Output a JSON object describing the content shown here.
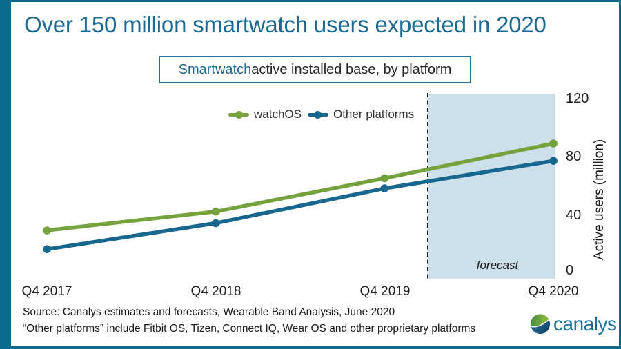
{
  "header": {
    "title": "Over 150 million smartwatch users expected in 2020",
    "subtitle": {
      "highlight": "Smartwatch",
      "rest": " active installed base, by platform"
    }
  },
  "chart_data": {
    "type": "line",
    "title": "Smartwatch active installed base, by platform",
    "categories": [
      "Q4 2017",
      "Q4 2018",
      "Q4 2019",
      "Q4 2020"
    ],
    "series": [
      {
        "name": "watchOS",
        "color": "#76a23e",
        "values": [
          30,
          43,
          66,
          90
        ]
      },
      {
        "name": "Other platforms",
        "color": "#17678e",
        "values": [
          17,
          35,
          59,
          78
        ]
      }
    ],
    "xlabel": "",
    "ylabel": "Active users (million)",
    "ylim": [
      0,
      120
    ],
    "yticks": [
      120,
      80,
      40,
      0
    ],
    "ytick_labels": [
      "120",
      "80",
      "40",
      "0"
    ],
    "grid": false,
    "legend_position": "top-center",
    "marker": "circle",
    "forecast": {
      "label": "forecast",
      "fill": "#cddfe9",
      "boundary_style": "dashed",
      "covers": "Q1 2020 through Q4 2020"
    }
  },
  "footer": {
    "source_line": "Source: Canalys estimates and forecasts, Wearable Band Analysis, June 2020",
    "note_line": "“Other platforms” include Fitbit OS, Tizen, Connect IQ, Wear OS and other proprietary platforms",
    "logo_text": "canalys"
  },
  "colors": {
    "frame_border": "#0c6a8d",
    "title_text": "#1b6a93",
    "subtitle_border": "#23749e",
    "forecast_fill": "#cddfe9",
    "axis_text": "#1f1f1f"
  }
}
